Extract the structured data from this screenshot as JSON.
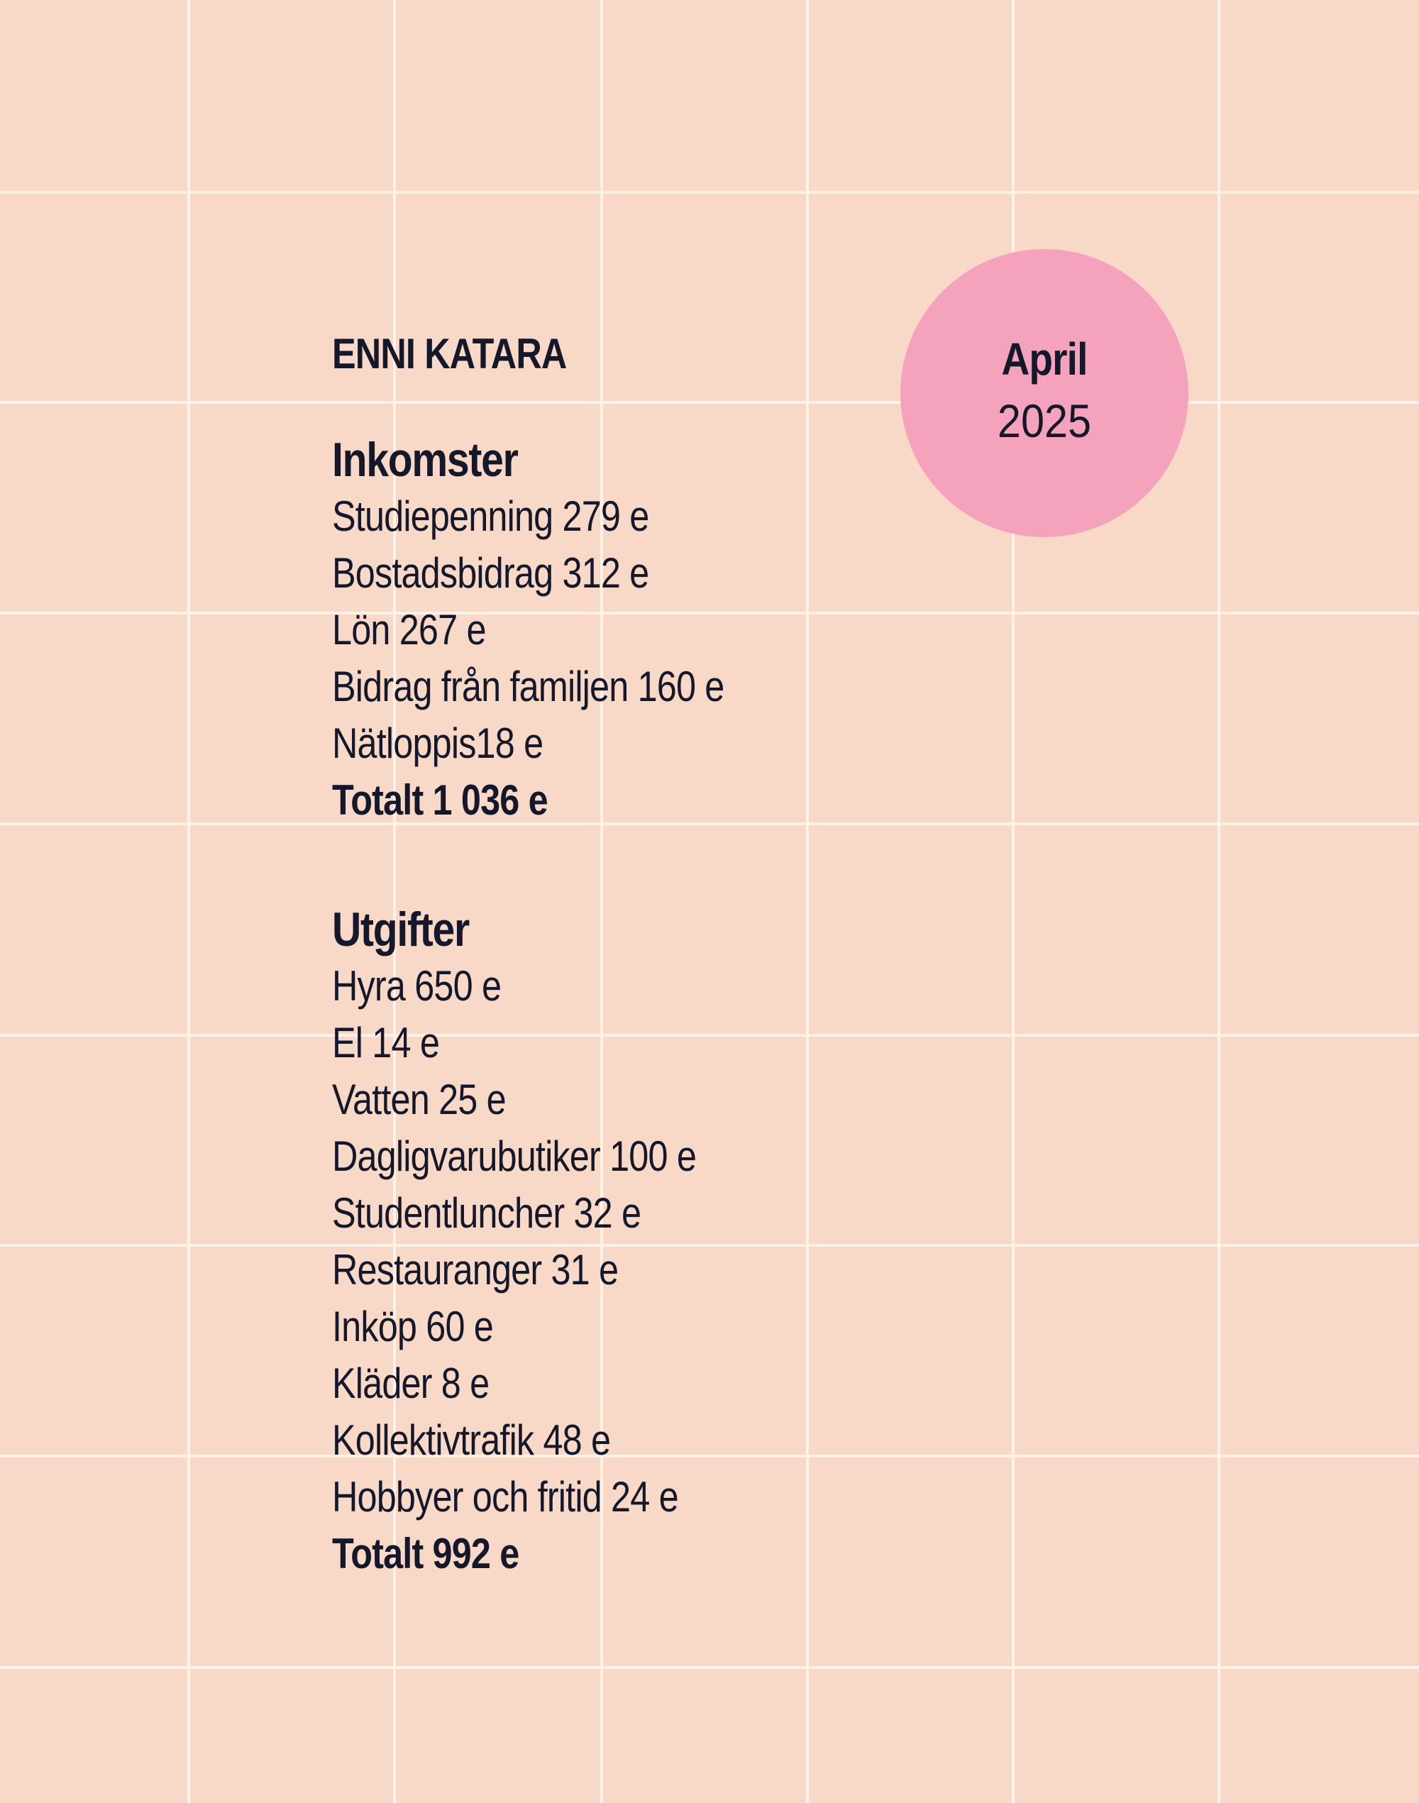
{
  "name": "ENNI KATARA",
  "month": "April",
  "year": "2025",
  "income": {
    "title": "Inkomster",
    "items": [
      "Studiepenning 279 e",
      "Bostadsbidrag 312 e",
      "Lön 267 e",
      "Bidrag från familjen 160 e",
      "Nätloppis18 e"
    ],
    "total": "Totalt 1 036 e"
  },
  "expenses": {
    "title": "Utgifter",
    "items": [
      "Hyra 650 e",
      "El 14 e",
      "Vatten 25 e",
      "Dagligvarubutiker 100 e",
      "Studentluncher 32 e",
      "Restauranger 31 e",
      "Inköp 60 e",
      "Kläder 8 e",
      "Kollektivtrafik 48 e",
      "Hobbyer och fritid 24 e"
    ],
    "total": "Totalt 992 e"
  }
}
